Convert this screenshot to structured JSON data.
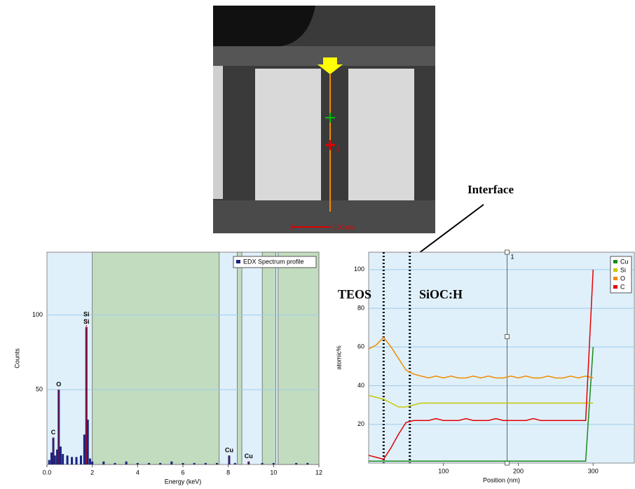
{
  "image": {
    "scale_bar": "100 nm",
    "marker": "1"
  },
  "annotations": {
    "interface": "Interface",
    "left_layer": "TEOS",
    "right_layer": "SiOC:H"
  },
  "chart_data": [
    {
      "type": "spectrum",
      "xlabel": "Energy (keV)",
      "ylabel": "Counts",
      "xlim": [
        0,
        12
      ],
      "ylim": [
        0,
        142
      ],
      "xticks": [
        {
          "value": 0,
          "label": "0.0"
        },
        2,
        4,
        6,
        8,
        10,
        12
      ],
      "yticks": [
        50,
        100
      ],
      "grid": true,
      "regions": [
        [
          2,
          7.6
        ],
        [
          8.4,
          8.6
        ],
        [
          9.5,
          10.1
        ],
        [
          10.2,
          12
        ]
      ],
      "x": [
        0.1,
        0.2,
        0.28,
        0.35,
        0.45,
        0.52,
        0.6,
        0.7,
        0.9,
        1.1,
        1.3,
        1.5,
        1.65,
        1.74,
        1.8,
        1.9,
        2.0,
        2.5,
        3,
        3.5,
        4,
        4.5,
        5,
        5.5,
        6,
        6.5,
        7,
        7.5,
        8.04,
        8.3,
        8.9,
        9.5,
        10,
        11,
        11.5
      ],
      "series": [
        {
          "name": "EDX Spectrum profile",
          "color": "#1a237e",
          "values": [
            3,
            8,
            18,
            6,
            10,
            50,
            12,
            7,
            6,
            5,
            5,
            6,
            20,
            92,
            30,
            4,
            2,
            2,
            1,
            2,
            1,
            1,
            1,
            2,
            1,
            1,
            1,
            1,
            6,
            1,
            2,
            1,
            1,
            1,
            1
          ]
        }
      ],
      "peak_labels": [
        {
          "label": "C",
          "x": 0.28,
          "y": 18
        },
        {
          "label": "O",
          "x": 0.52,
          "y": 50
        },
        {
          "label": "Si",
          "x": 1.74,
          "y": 97
        },
        {
          "label": "Si",
          "x": 1.74,
          "y": 92
        },
        {
          "label": "Cu",
          "x": 8.04,
          "y": 6
        },
        {
          "label": "Cu",
          "x": 8.9,
          "y": 2
        }
      ],
      "legend": "upper right"
    },
    {
      "type": "line",
      "xlabel": "Position (nm)",
      "ylabel": "atomic%",
      "xlim": [
        0,
        355
      ],
      "ylim": [
        0,
        109
      ],
      "xticks": [
        100,
        200,
        300
      ],
      "yticks": [
        20,
        40,
        60,
        80,
        100
      ],
      "grid": true,
      "markers": [
        20,
        55
      ],
      "cursor": {
        "x": 185,
        "label": "1"
      },
      "x": [
        0,
        10,
        20,
        30,
        40,
        50,
        60,
        70,
        80,
        90,
        100,
        110,
        120,
        130,
        140,
        150,
        160,
        170,
        180,
        190,
        200,
        210,
        220,
        230,
        240,
        250,
        260,
        270,
        280,
        290,
        300
      ],
      "series": [
        {
          "name": "Cu",
          "color": "#1a8a1a",
          "values": [
            1,
            1,
            1,
            1,
            1,
            1,
            1,
            1,
            1,
            1,
            1,
            1,
            1,
            1,
            1,
            1,
            1,
            1,
            1,
            1,
            1,
            1,
            1,
            1,
            1,
            1,
            1,
            1,
            1,
            1,
            60
          ]
        },
        {
          "name": "Si",
          "color": "#c8c800",
          "values": [
            35,
            34,
            33,
            31,
            29,
            29,
            30,
            31,
            31,
            31,
            31,
            31,
            31,
            31,
            31,
            31,
            31,
            31,
            31,
            31,
            31,
            31,
            31,
            31,
            31,
            31,
            31,
            31,
            31,
            31,
            31
          ]
        },
        {
          "name": "O",
          "color": "#f08c00",
          "values": [
            59,
            61,
            65,
            60,
            54,
            48,
            46,
            45,
            44,
            45,
            44,
            45,
            44,
            44,
            45,
            44,
            45,
            44,
            44,
            45,
            44,
            45,
            44,
            44,
            45,
            44,
            44,
            45,
            44,
            45,
            44
          ]
        },
        {
          "name": "C",
          "color": "#e00000",
          "values": [
            4,
            3,
            2,
            8,
            15,
            21,
            22,
            22,
            22,
            23,
            22,
            22,
            22,
            23,
            22,
            22,
            22,
            23,
            22,
            22,
            22,
            22,
            23,
            22,
            22,
            22,
            22,
            22,
            22,
            22,
            100
          ]
        }
      ],
      "legend": "upper right"
    }
  ]
}
